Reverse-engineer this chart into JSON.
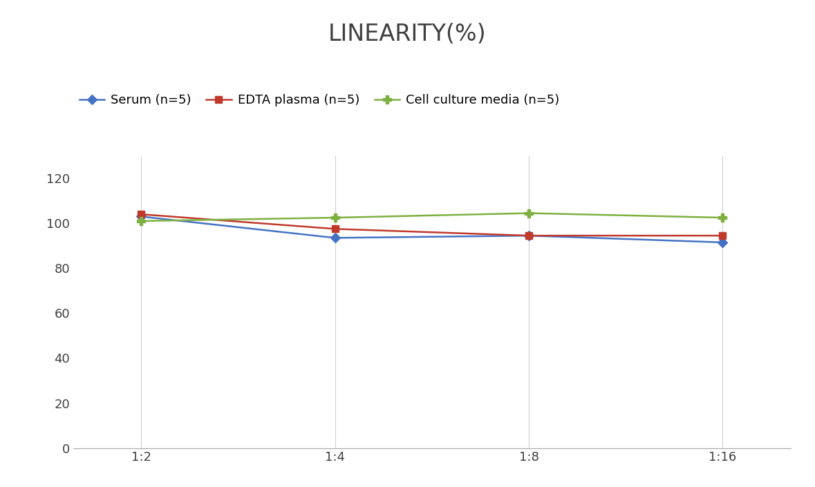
{
  "title": "LINEARITY(%)",
  "title_fontsize": 24,
  "title_fontweight": "normal",
  "title_color": "#404040",
  "x_labels": [
    "1:2",
    "1:4",
    "1:8",
    "1:16"
  ],
  "x_positions": [
    0,
    1,
    2,
    3
  ],
  "series": [
    {
      "label": "Serum (n=5)",
      "values": [
        103.0,
        93.5,
        94.5,
        91.5
      ],
      "color": "#4472C4",
      "marker": "D",
      "marker_size": 7,
      "linewidth": 1.8
    },
    {
      "label": "EDTA plasma (n=5)",
      "values": [
        104.0,
        97.5,
        94.5,
        94.5
      ],
      "color": "#C0392B",
      "marker": "s",
      "marker_size": 7,
      "linewidth": 1.8
    },
    {
      "label": "Cell culture media (n=5)",
      "values": [
        101.0,
        102.5,
        104.5,
        102.5
      ],
      "color": "#7DB040",
      "marker": "P",
      "marker_size": 9,
      "linewidth": 1.8
    }
  ],
  "ylim": [
    0,
    130
  ],
  "yticks": [
    0,
    20,
    40,
    60,
    80,
    100,
    120
  ],
  "legend_fontsize": 13,
  "tick_fontsize": 13,
  "tick_color": "#404040",
  "background_color": "#ffffff",
  "grid_color": "#d0d0d0",
  "spine_color": "#aaaaaa"
}
